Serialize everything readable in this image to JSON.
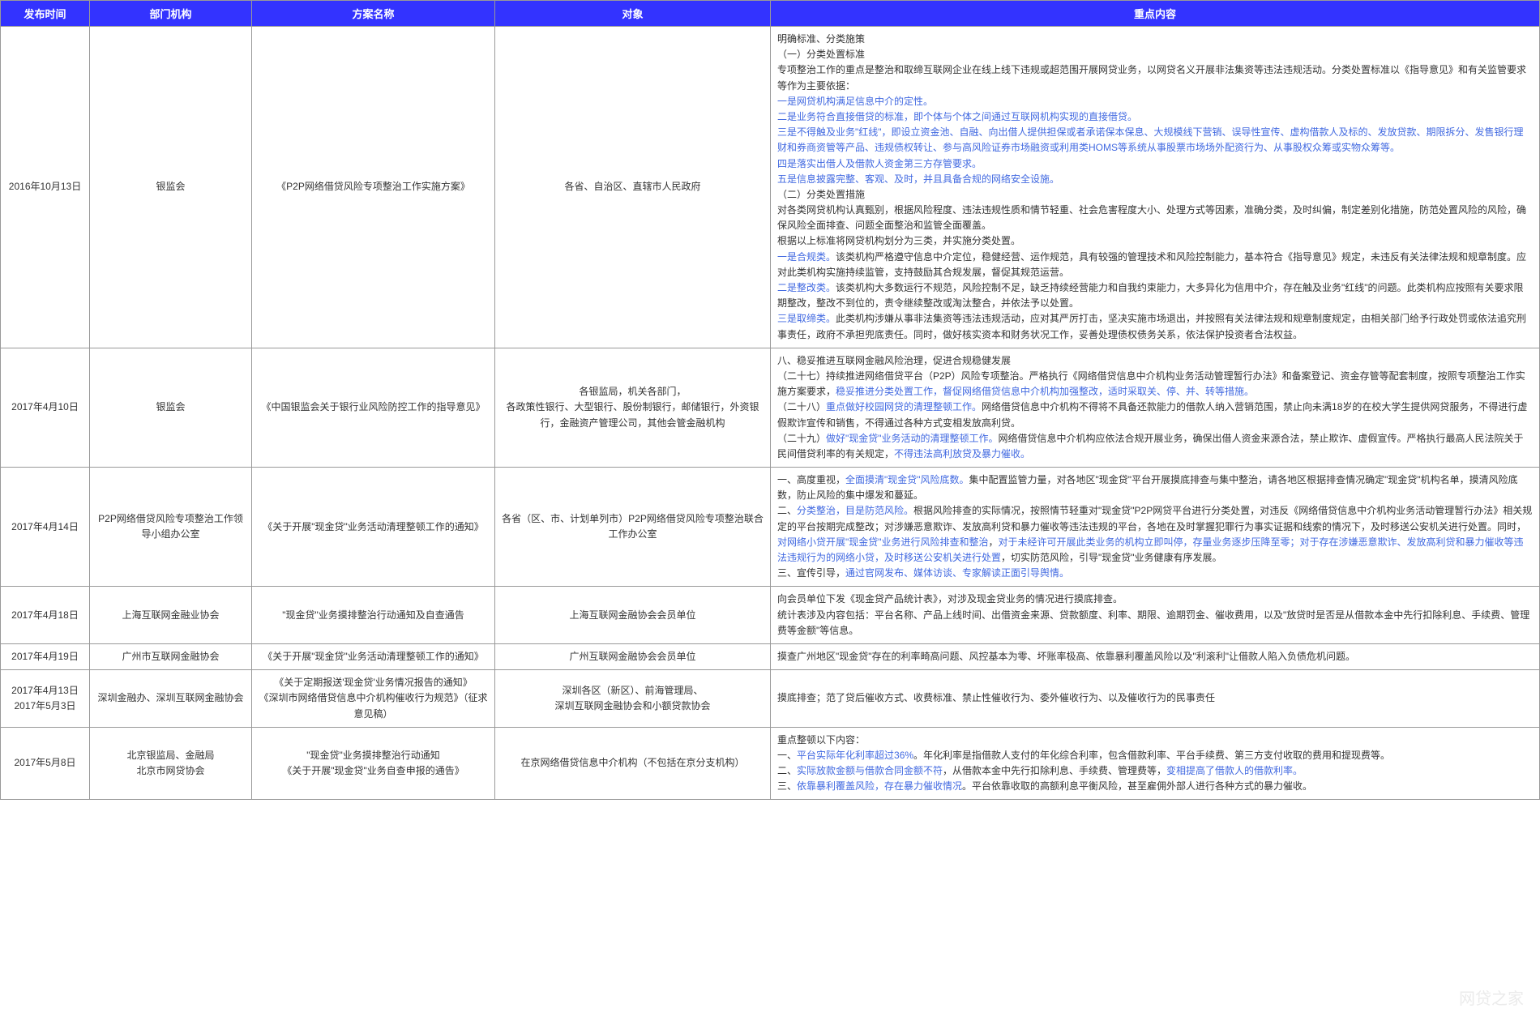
{
  "headers": [
    "发布时间",
    "部门机构",
    "方案名称",
    "对象",
    "重点内容"
  ],
  "watermark": "网贷之家",
  "rows": [
    {
      "date": "2016年10月13日",
      "dept": "银监会",
      "plan": "《P2P网络借贷风险专项整治工作实施方案》",
      "target": "各省、自治区、直辖市人民政府",
      "content_html": "明确标准、分类施策<br>（一）分类处置标准<br>专项整治工作的重点是整治和取缔互联网企业在线上线下违规或超范围开展网贷业务，以网贷名义开展非法集资等违法违规活动。分类处置标准以《指导意见》和有关监管要求等作为主要依据：<br><span class='blue'>一是网贷机构满足信息中介的定性。</span><br><span class='blue'>二是业务符合直接借贷的标准，即个体与个体之间通过互联网机构实现的直接借贷。</span><br><span class='blue'>三是不得触及业务\"红线\"，即设立资金池、自融、向出借人提供担保或者承诺保本保息、大规模线下营销、误导性宣传、虚构借款人及标的、发放贷款、期限拆分、发售银行理财和券商资管等产品、违规债权转让、参与高风险证券市场融资或利用类HOMS等系统从事股票市场场外配资行为、从事股权众筹或实物众筹等。</span><br><span class='blue'>四是落实出借人及借款人资金第三方存管要求。</span><br><span class='blue'>五是信息披露完整、客观、及时，并且具备合规的网络安全设施。</span><br>（二）分类处置措施<br>对各类网贷机构认真甄别，根据风险程度、违法违规性质和情节轻重、社会危害程度大小、处理方式等因素，准确分类，及时纠偏，制定差别化措施，防范处置风险的风险，确保风险全面排查、问题全面整治和监管全面覆盖。<br>根据以上标准将网贷机构划分为三类，并实施分类处置。<br><span class='blue'>一是合规类。</span>该类机构严格遵守信息中介定位，稳健经营、运作规范，具有较强的管理技术和风险控制能力，基本符合《指导意见》规定，未违反有关法律法规和规章制度。应对此类机构实施持续监管，支持鼓励其合规发展，督促其规范运营。<br><span class='blue'>二是整改类。</span>该类机构大多数运行不规范，风险控制不足，缺乏持续经营能力和自我约束能力，大多异化为信用中介，存在触及业务\"红线\"的问题。此类机构应按照有关要求限期整改，整改不到位的，责令继续整改或淘汰整合，并依法予以处置。<br><span class='blue'>三是取缔类。</span>此类机构涉嫌从事非法集资等违法违规活动，应对其严厉打击，坚决实施市场退出，并按照有关法律法规和规章制度规定，由相关部门给予行政处罚或依法追究刑事责任，政府不承担兜底责任。同时，做好核实资本和财务状况工作，妥善处理债权债务关系，依法保护投资者合法权益。"
    },
    {
      "date": "2017年4月10日",
      "dept": "银监会",
      "plan": "《中国银监会关于银行业风险防控工作的指导意见》",
      "target": "各银监局，机关各部门，<br>各政策性银行、大型银行、股份制银行，邮储银行，外资银行，金融资产管理公司，其他会管金融机构",
      "content_html": "八、稳妥推进互联网金融风险治理，促进合规稳健发展<br>（二十七）持续推进网络借贷平台（P2P）风险专项整治。严格执行《网络借贷信息中介机构业务活动管理暂行办法》和备案登记、资金存管等配套制度，按照专项整治工作实施方案要求，<span class='blue'>稳妥推进分类处置工作，督促网络借贷信息中介机构加强整改，适时采取关、停、并、转等措施。</span><br>（二十八）<span class='blue'>重点做好校园网贷的清理整顿工作。</span>网络借贷信息中介机构不得将不具备还款能力的借款人纳入营销范围，禁止向未满18岁的在校大学生提供网贷服务，不得进行虚假欺诈宣传和销售，不得通过各种方式变相发放高利贷。<br>（二十九）<span class='blue'>做好\"现金贷\"业务活动的清理整顿工作。</span>网络借贷信息中介机构应依法合规开展业务，确保出借人资金来源合法，禁止欺诈、虚假宣传。严格执行最高人民法院关于民间借贷利率的有关规定，<span class='blue'>不得违法高利放贷及暴力催收。</span>"
    },
    {
      "date": "2017年4月14日",
      "dept": "P2P网络借贷风险专项整治工作领导小组办公室",
      "plan": "《关于开展\"现金贷\"业务活动清理整顿工作的通知》",
      "target": "各省（区、市、计划单列市）P2P网络借贷风险专项整治联合工作办公室",
      "content_html": "一、高度重视，<span class='blue'>全面摸清\"现金贷\"风险底数。</span>集中配置监管力量，对各地区\"现金贷\"平台开展摸底排查与集中整治，请各地区根据排查情况确定\"现金贷\"机构名单，摸清风险底数，防止风险的集中爆发和蔓延。<br>二、<span class='blue'>分类整治，目是防范风险。</span>根据风险排查的实际情况，按照情节轻重对\"现金贷\"P2P网贷平台进行分类处置，对违反《网络借贷信息中介机构业务活动管理暂行办法》相关规定的平台按期完成整改；对涉嫌恶意欺诈、发放高利贷和暴力催收等违法违规的平台，各地在及时掌握犯罪行为事实证据和线索的情况下，及时移送公安机关进行处置。同时，<span class='blue'>对网络小贷开展\"现金贷\"业务进行风险排查和整治</span>，<span class='blue'>对于未经许可开展此类业务的机构立即叫停，存量业务逐步压降至零；对于存在涉嫌恶意欺诈、发放高利贷和暴力催收等违法违规行为的网络小贷，及时移送公安机关进行处置</span>，切实防范风险，引导\"现金贷\"业务健康有序发展。<br>三、宣传引导，<span class='blue'>通过官网发布、媒体访谈、专家解读正面引导舆情。</span>"
    },
    {
      "date": "2017年4月18日",
      "dept": "上海互联网金融业协会",
      "plan": "\"现金贷\"业务摸排整治行动通知及自查通告",
      "target": "上海互联网金融协会会员单位",
      "content_html": "向会员单位下发《现金贷产品统计表》，对涉及现金贷业务的情况进行摸底排查。<br>统计表涉及内容包括：平台名称、产品上线时间、出借资金来源、贷款额度、利率、期限、逾期罚金、催收费用，以及\"放贷时是否是从借款本金中先行扣除利息、手续费、管理费等金额\"等信息。"
    },
    {
      "date": "2017年4月19日",
      "dept": "广州市互联网金融协会",
      "plan": "《关于开展\"现金贷\"业务活动清理整顿工作的通知》",
      "target": "广州互联网金融协会会员单位",
      "content_html": "摸查广州地区\"现金贷\"存在的利率畸高问题、风控基本为零、坏账率极高、依靠暴利覆盖风险以及\"利滚利\"让借款人陷入负债危机问题。"
    },
    {
      "date": "2017年4月13日<br>2017年5月3日",
      "dept": "深圳金融办、深圳互联网金融协会",
      "plan": "《关于定期报送'现金贷'业务情况报告的通知》<br>《深圳市网络借贷信息中介机构催收行为规范》（征求意见稿）",
      "target": "深圳各区（新区）、前海管理局、<br>深圳互联网金融协会和小额贷款协会",
      "content_html": "摸底排查；范了贷后催收方式、收费标准、禁止性催收行为、委外催收行为、以及催收行为的民事责任"
    },
    {
      "date": "2017年5月8日",
      "dept": "北京银监局、金融局<br>北京市网贷协会",
      "plan": "\"现金贷\"业务摸排整治行动通知<br>《关于开展\"现金贷\"业务自查申报的通告》",
      "target": "在京网络借贷信息中介机构（不包括在京分支机构）",
      "content_html": "重点整顿以下内容：<br>一、<span class='blue'>平台实际年化利率超过36%</span>。年化利率是指借款人支付的年化综合利率，包含借款利率、平台手续费、第三方支付收取的费用和提现费等。<br>二、<span class='blue'>实际放款金额与借款合同金额不符</span>，从借款本金中先行扣除利息、手续费、管理费等，<span class='blue'>变相提高了借款人的借款利率。</span><br>三、<span class='blue'>依靠暴利覆盖风险，存在暴力催收情况</span>。平台依靠收取的高额利息平衡风险，甚至雇佣外部人进行各种方式的暴力催收。"
    }
  ]
}
